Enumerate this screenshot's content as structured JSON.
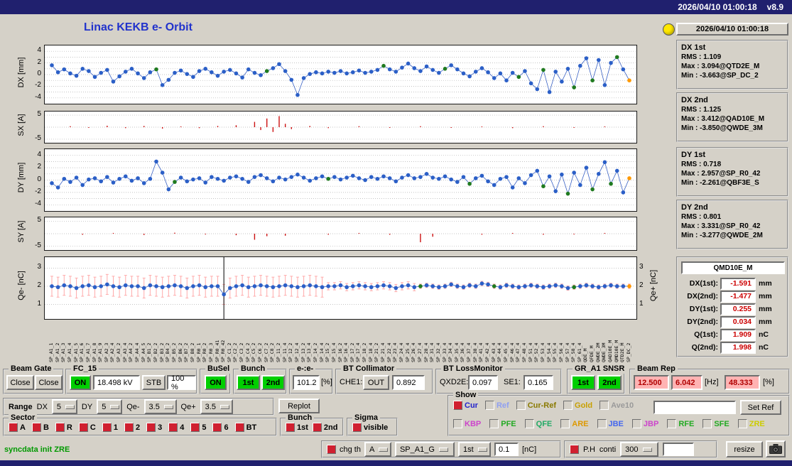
{
  "window": {
    "datetime": "2026/04/10 01:00:18",
    "version": "v8.9"
  },
  "title": "Linac KEKB e- Orbit",
  "clock": "2026/04/10 01:00:18",
  "colors": {
    "accent_green": "#00cf00",
    "alarm_pink": "#ffb3b3",
    "value_red": "#cc0000",
    "titlebar": "#20206e",
    "title_blue": "#2233cc",
    "indicator_yellow": "#ffe800"
  },
  "stats": {
    "dx1": {
      "title": "DX 1st",
      "rms_label": "RMS : ",
      "rms_value": "1.109",
      "max_label": "Max : ",
      "max_value": "3.094@QTD2E_M",
      "min_label": "Min : ",
      "min_value": "-3.663@SP_DC_2"
    },
    "dx2": {
      "title": "DX 2nd",
      "rms_label": "RMS : ",
      "rms_value": "1.125",
      "max_label": "Max : ",
      "max_value": "3.412@QAD10E_M",
      "min_label": "Min : ",
      "min_value": "-3.850@QWDE_3M"
    },
    "dy1": {
      "title": "DY 1st",
      "rms_label": "RMS : ",
      "rms_value": "0.718",
      "max_label": "Max : ",
      "max_value": "2.957@SP_R0_42",
      "min_label": "Min : ",
      "min_value": "-2.261@QBF3E_S"
    },
    "dy2": {
      "title": "DY 2nd",
      "rms_label": "RMS : ",
      "rms_value": "0.801",
      "max_label": "Max : ",
      "max_value": "3.331@SP_R0_42",
      "min_label": "Min : ",
      "min_value": "-3.277@QWDE_2M"
    }
  },
  "qmd": {
    "title": "QMD10E_M",
    "rows": [
      {
        "label": "DX(1st):",
        "value": "-1.591",
        "unit": "mm"
      },
      {
        "label": "DX(2nd):",
        "value": "-1.477",
        "unit": "mm"
      },
      {
        "label": "DY(1st):",
        "value": "0.255",
        "unit": "mm"
      },
      {
        "label": "DY(2nd):",
        "value": "0.034",
        "unit": "mm"
      },
      {
        "label": "Q(1st):",
        "value": "1.909",
        "unit": "nC"
      },
      {
        "label": "Q(2nd):",
        "value": "1.998",
        "unit": "nC"
      }
    ]
  },
  "beam_gate": {
    "title": "Beam Gate",
    "close1": "Close",
    "close2": "Close"
  },
  "fc15": {
    "title": "FC_15",
    "on": "ON",
    "kv": "18.498 kV",
    "stb": "STB",
    "duty": "100 %"
  },
  "busel": {
    "title": "BuSel",
    "on": "ON"
  },
  "bunch_top": {
    "title": "Bunch",
    "first": "1st",
    "second": "2nd"
  },
  "ee_ratio": {
    "title": "e-:e-",
    "value": "101.2",
    "unit": "[%]"
  },
  "bt_collimator": {
    "title": "BT Collimator",
    "che1_label": "CHE1:",
    "che1_state": "OUT",
    "value": "0.892"
  },
  "bt_lossmonitor": {
    "title": "BT LossMonitor",
    "qxd2e_label": "QXD2E:",
    "qxd2e_value": "0.097",
    "se1_label": "SE1:",
    "se1_value": "0.165"
  },
  "gr_a1_snsr": {
    "title": "GR_A1 SNSR",
    "first": "1st",
    "second": "2nd"
  },
  "beam_rep": {
    "title": "Beam Rep",
    "rate1": "12.500",
    "rate2": "6.042",
    "hz_unit": "[Hz]",
    "duty": "48.333",
    "pct_unit": "[%]"
  },
  "range": {
    "title": "Range",
    "dx_label": "DX",
    "dx_value": "5",
    "dy_label": "DY",
    "dy_value": "5",
    "qem_label": "Qe-",
    "qem_value": "3.5",
    "qep_label": "Qe+",
    "qep_value": "3.5"
  },
  "replot_label": "Replot",
  "show": {
    "title": "Show",
    "row1": [
      {
        "label": "Cur",
        "color": "#2222cc",
        "checked": true
      },
      {
        "label": "Ref",
        "color": "#8f9ff2",
        "checked": false
      },
      {
        "label": "Cur-Ref",
        "color": "#8a7a00",
        "checked": false
      },
      {
        "label": "Gold",
        "color": "#c8a000",
        "checked": false
      },
      {
        "label": "Ave10",
        "color": "#9a9a9a",
        "checked": false
      }
    ],
    "row2": [
      {
        "label": "KBP",
        "color": "#cc44cc",
        "checked": false
      },
      {
        "label": "PFE",
        "color": "#22aa22",
        "checked": false
      },
      {
        "label": "QFE",
        "color": "#22aa66",
        "checked": false
      },
      {
        "label": "ARE",
        "color": "#dd9900",
        "checked": false
      },
      {
        "label": "JBE",
        "color": "#4466ee",
        "checked": false
      },
      {
        "label": "JBP",
        "color": "#cc44cc",
        "checked": false
      },
      {
        "label": "RFE",
        "color": "#22aa22",
        "checked": false
      },
      {
        "label": "SFE",
        "color": "#22aa22",
        "checked": false
      },
      {
        "label": "ZRE",
        "color": "#cccc00",
        "checked": false
      }
    ],
    "input_value": "",
    "set_ref_label": "Set Ref"
  },
  "sector": {
    "title": "Sector",
    "items": [
      "A",
      "B",
      "R",
      "C",
      "1",
      "2",
      "3",
      "4",
      "5",
      "6",
      "BT"
    ]
  },
  "bunch_bottom": {
    "title": "Bunch",
    "items": [
      "1st",
      "2nd"
    ]
  },
  "sigma": {
    "title": "Sigma",
    "items": [
      "visible"
    ]
  },
  "statusline": "syncdata init ZRE",
  "threshold_panel": {
    "chg_th": "chg th",
    "region": "A",
    "device": "SP_A1_G",
    "bunch": "1st",
    "value": "0.1",
    "unit": "[nC]"
  },
  "monitor_panel": {
    "ph": "P.H",
    "conti": "conti",
    "interval": "300",
    "input_value": ""
  },
  "resize_label": "resize",
  "chart_data": {
    "type": "scatter",
    "colors": {
      "point": "#2b5fc7",
      "green": "#1f7a1f",
      "orange": "#ff9900",
      "bar": "#cc1111",
      "err": "#ffaaaa",
      "line": "#3a62c4"
    },
    "x_labels": [
      "SP_A1_1",
      "SP_A1_2",
      "SP_A1_3",
      "SP_A1_4",
      "SP_A1_5",
      "SP_A1_6",
      "SP_A1_7",
      "SP_A1_8",
      "SP_A1_9",
      "SP_A2_3",
      "SP_A2_4",
      "SP_A3_2",
      "SP_A3_4",
      "SP_A4_2",
      "SP_A4_4",
      "SP_A4_5",
      "SP_B1_2",
      "SP_B2_2",
      "SP_B3_2",
      "SP_B4_2",
      "SP_B5_2",
      "SP_B6_2",
      "SP_B7_2",
      "SP_B8_2",
      "SP_R0_1",
      "SP_R0_2",
      "SP_R0_3",
      "SP_R0_41",
      "SP_R0_42",
      "SP_C1_2",
      "SP_C2_2",
      "SP_C3_2",
      "SP_C4_2",
      "SP_C5_2",
      "SP_C6_2",
      "SP_C7_2",
      "SP_C8_2",
      "SP_11_2",
      "SP_11_4",
      "SP_12_2",
      "SP_12_4",
      "SP_13_2",
      "SP_13_4",
      "SP_14_2",
      "SP_14_4",
      "SP_15_2",
      "SP_15_4",
      "SP_16_2",
      "SP_16_4",
      "SP_17_2",
      "SP_17_4",
      "SP_18_2",
      "SP_18_4",
      "SP_21_2",
      "SP_21_4",
      "SP_22_4",
      "SP_23_4",
      "SP_24_4",
      "SP_25_4",
      "SP_26_4",
      "SP_27_4",
      "SP_28_4",
      "SP_31_4",
      "SP_32_4",
      "SP_33_4",
      "SP_34_4",
      "SP_35_4",
      "SP_36_4",
      "SP_37_4",
      "SP_38_4",
      "SP_41_4",
      "SP_42_4",
      "SP_43_4",
      "SP_44_4",
      "SP_45_4",
      "SP_46_4",
      "SP_47_4",
      "SP_48_4",
      "SP_51_4",
      "SP_52_4",
      "SP_53_4",
      "SP_54_4",
      "SP_55_4",
      "SP_56_4",
      "SP_57_4",
      "SP_58_4",
      "SP_61_4",
      "QDE_M",
      "QFDE_M",
      "QWDE_2M",
      "QWDE_3M",
      "QAD10E_M",
      "QMD10E_M",
      "QTD2E_M",
      "SP_DC_2"
    ],
    "plots": [
      {
        "id": "dx",
        "type": "scatter_line",
        "axis_label": "DX [mm]",
        "ylim": [
          -5,
          5
        ],
        "yticks": [
          4,
          2,
          0,
          -2,
          -4
        ],
        "grid": [
          -4,
          -3,
          -2,
          -1,
          0,
          1,
          2,
          3,
          4
        ],
        "values": [
          1.6,
          0.4,
          0.9,
          0.2,
          -0.2,
          1.0,
          0.6,
          -0.4,
          0.3,
          0.8,
          -1.2,
          -0.3,
          0.5,
          1.0,
          0.2,
          -0.6,
          0.4,
          0.9,
          -1.8,
          -0.9,
          0.3,
          0.7,
          0.1,
          -0.4,
          0.6,
          1.0,
          0.4,
          -0.2,
          0.5,
          0.8,
          0.2,
          -0.5,
          0.9,
          0.3,
          -0.1,
          0.6,
          1.1,
          1.8,
          0.6,
          -0.9,
          -3.5,
          -0.6,
          0.1,
          0.4,
          0.2,
          0.5,
          0.3,
          0.6,
          0.2,
          0.4,
          0.7,
          0.3,
          0.5,
          0.8,
          1.5,
          0.9,
          0.5,
          1.2,
          1.9,
          1.1,
          0.6,
          1.4,
          0.8,
          0.3,
          1.0,
          1.6,
          0.9,
          0.2,
          -0.3,
          0.5,
          1.1,
          0.4,
          -0.6,
          0.2,
          -1.0,
          0.3,
          -0.4,
          0.6,
          -1.5,
          -2.5,
          0.8,
          -3.0,
          0.5,
          -1.2,
          1.0,
          -2.2,
          1.5,
          2.8,
          -1.0,
          2.5,
          -1.8,
          2.0,
          3.0,
          0.9,
          -1.0
        ],
        "green_idx": [
          17,
          35,
          54,
          64,
          76,
          80,
          85,
          88,
          92
        ],
        "orange_idx": [
          94
        ]
      },
      {
        "id": "sx",
        "type": "bars",
        "axis_label": "SX [A]",
        "ylim": [
          -6.5,
          6.5
        ],
        "yticks": [
          5,
          -5
        ],
        "grid": [
          5,
          0,
          -5
        ],
        "values": [
          0,
          0,
          0,
          0.4,
          0,
          0,
          -0.3,
          0,
          0,
          0.6,
          0,
          0,
          -0.4,
          0,
          0,
          0.5,
          0,
          0,
          -0.6,
          0,
          0,
          0.3,
          0,
          0,
          -0.4,
          0,
          0,
          0.5,
          0,
          0,
          0.8,
          0,
          0,
          2.2,
          -1.2,
          3.6,
          -2.0,
          4.6,
          1.4,
          -0.8,
          0,
          0,
          0.5,
          0,
          0,
          -0.4,
          0,
          0,
          0,
          0,
          0.4,
          0,
          0,
          0,
          0,
          -0.3,
          0,
          0,
          0,
          0,
          0.4,
          0,
          0,
          0,
          0,
          -0.3,
          0,
          0,
          0,
          0,
          0.3,
          0,
          0,
          0,
          0,
          -0.4,
          0,
          0,
          0,
          0,
          0.4,
          0,
          0,
          0,
          0,
          -0.3,
          0,
          0,
          0,
          0,
          0.3,
          0,
          0,
          0,
          0
        ]
      },
      {
        "id": "dy",
        "type": "scatter_line",
        "axis_label": "DY [mm]",
        "ylim": [
          -5,
          5
        ],
        "yticks": [
          4,
          2,
          0,
          -2,
          -4
        ],
        "grid": [
          -4,
          -3,
          -2,
          -1,
          0,
          1,
          2,
          3,
          4
        ],
        "values": [
          -0.5,
          -1.2,
          0.2,
          -0.3,
          0.4,
          -0.8,
          0.1,
          0.3,
          -0.2,
          0.5,
          -0.4,
          0.2,
          0.6,
          -0.1,
          0.3,
          -0.5,
          0.2,
          3.0,
          1.2,
          -1.5,
          -0.3,
          0.4,
          -0.2,
          0.1,
          0.3,
          -0.4,
          0.5,
          0.2,
          -0.1,
          0.4,
          0.6,
          0.2,
          -0.3,
          0.5,
          0.8,
          0.3,
          -0.2,
          0.4,
          0.1,
          0.5,
          0.9,
          0.4,
          -0.1,
          0.3,
          0.6,
          0.2,
          0.5,
          0.1,
          0.4,
          0.7,
          0.3,
          0.0,
          0.5,
          0.2,
          0.6,
          0.3,
          -0.2,
          0.4,
          0.8,
          0.3,
          0.5,
          1.0,
          0.4,
          0.2,
          0.6,
          0.1,
          -0.3,
          0.5,
          -0.6,
          0.3,
          0.7,
          -0.2,
          -0.8,
          0.2,
          0.5,
          -1.2,
          0.3,
          -0.5,
          0.8,
          1.5,
          -1.0,
          0.6,
          -1.8,
          0.9,
          -2.2,
          1.2,
          -0.8,
          2.0,
          -1.5,
          1.0,
          2.9,
          -0.6,
          1.5,
          -2.0,
          0.3
        ],
        "green_idx": [
          20,
          45,
          68,
          80,
          84,
          88,
          91
        ],
        "orange_idx": [
          94
        ]
      },
      {
        "id": "sy",
        "type": "bars",
        "axis_label": "SY [A]",
        "ylim": [
          -6.5,
          6.5
        ],
        "yticks": [
          5,
          -5
        ],
        "grid": [
          5,
          0,
          -5
        ],
        "values": [
          0,
          0,
          0,
          0,
          0,
          -0.4,
          0,
          0,
          0,
          0,
          0.3,
          0,
          0,
          0,
          0,
          -0.5,
          0,
          0,
          0,
          0,
          0.4,
          0,
          0,
          0,
          0,
          -0.3,
          0,
          0,
          0,
          0,
          -0.6,
          0,
          0,
          -2.4,
          0,
          -1.0,
          0,
          0,
          -0.8,
          0,
          0,
          0,
          0,
          0,
          0,
          -0.4,
          0,
          0,
          0,
          0,
          0.3,
          0,
          0,
          0,
          0,
          -0.4,
          0,
          0,
          0,
          0,
          -3.4,
          0,
          -1.2,
          0,
          0,
          0,
          0,
          0,
          0,
          0,
          -0.4,
          0,
          0,
          0,
          0,
          0.3,
          0,
          0,
          0,
          0,
          -0.4,
          0,
          0,
          0,
          0,
          -0.3,
          0,
          0,
          0,
          0,
          0.3,
          0,
          0,
          0,
          0
        ]
      },
      {
        "id": "qe",
        "type": "scatter_err",
        "axis_label": "Qe- [nC]",
        "right_axis_label": "Qe+ [nC]",
        "ylim": [
          0.2,
          3.6
        ],
        "yticks": [
          3,
          2,
          1
        ],
        "right_yticks": [
          3,
          2,
          1
        ],
        "grid": [
          1,
          2,
          3
        ],
        "values": [
          2.0,
          1.95,
          2.05,
          2.0,
          1.9,
          2.0,
          2.05,
          1.95,
          2.0,
          2.1,
          2.0,
          1.95,
          2.05,
          2.0,
          2.0,
          1.9,
          2.05,
          2.0,
          1.95,
          2.0,
          2.05,
          2.0,
          1.9,
          2.0,
          2.05,
          1.95,
          2.0,
          2.0,
          1.55,
          1.9,
          2.0,
          2.05,
          1.95,
          2.0,
          2.05,
          2.0,
          1.95,
          2.0,
          2.05,
          2.0,
          1.95,
          2.0,
          2.05,
          2.0,
          1.95,
          2.0,
          2.0,
          2.05,
          1.95,
          2.0,
          2.05,
          2.0,
          1.95,
          2.0,
          2.05,
          2.0,
          1.9,
          2.0,
          2.05,
          1.95,
          2.0,
          2.05,
          2.0,
          1.95,
          2.0,
          2.1,
          2.0,
          1.95,
          2.05,
          2.0,
          2.15,
          2.1,
          2.0,
          1.95,
          2.05,
          2.0,
          1.95,
          2.0,
          2.05,
          2.0,
          1.95,
          2.0,
          2.05,
          2.0,
          1.9,
          1.95,
          2.0,
          2.05,
          2.0,
          1.95,
          2.0,
          2.05,
          2.0,
          2.0,
          2.0
        ],
        "err_segments": [
          [
            45,
            0.55
          ],
          [
            60,
            0.2
          ],
          [
            95,
            0.12
          ]
        ],
        "cursor_idx": 28,
        "green_idx": [
          60,
          72,
          85
        ],
        "orange_idx": [
          94
        ]
      }
    ]
  }
}
